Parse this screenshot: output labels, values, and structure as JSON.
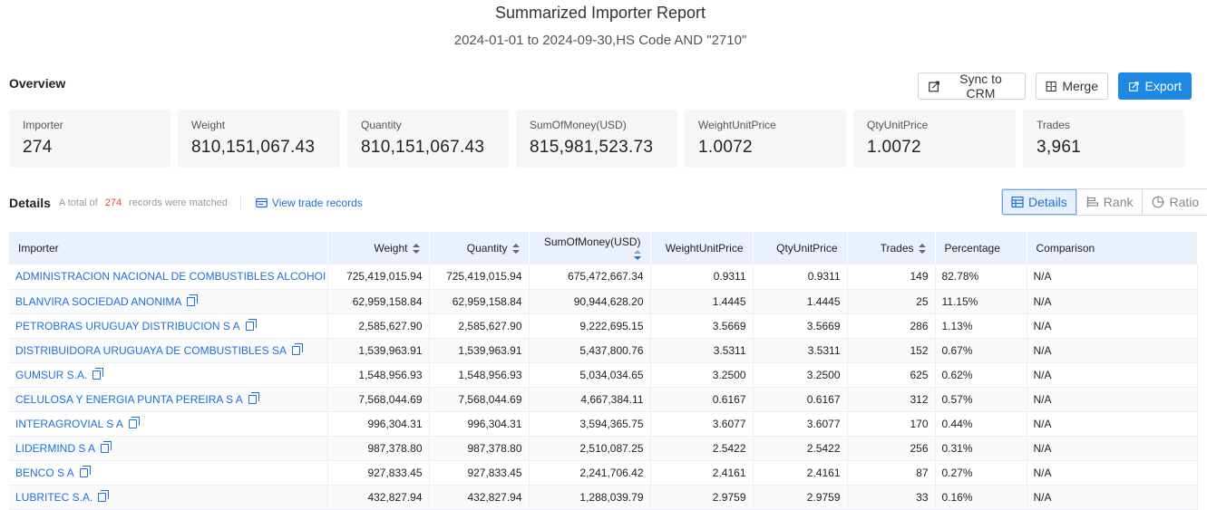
{
  "report": {
    "title": "Summarized Importer Report",
    "subtitle": "2024-01-01 to 2024-09-30,HS Code AND \"2710\""
  },
  "overview": {
    "label": "Overview",
    "sync_label": "Sync to CRM",
    "merge_label": "Merge",
    "export_label": "Export"
  },
  "cards": [
    {
      "label": "Importer",
      "value": "274"
    },
    {
      "label": "Weight",
      "value": "810,151,067.43"
    },
    {
      "label": "Quantity",
      "value": "810,151,067.43"
    },
    {
      "label": "SumOfMoney(USD)",
      "value": "815,981,523.73"
    },
    {
      "label": "WeightUnitPrice",
      "value": "1.0072"
    },
    {
      "label": "QtyUnitPrice",
      "value": "1.0072"
    },
    {
      "label": "Trades",
      "value": "3,961"
    }
  ],
  "details": {
    "label": "Details",
    "total_prefix": "A total of",
    "count": "274",
    "total_suffix": "records were matched",
    "view_link": "View trade records",
    "tabs": [
      "Details",
      "Rank",
      "Ratio"
    ]
  },
  "table": {
    "columns": [
      "Importer",
      "Weight",
      "Quantity",
      "SumOfMoney(USD)",
      "WeightUnitPrice",
      "QtyUnitPrice",
      "Trades",
      "Percentage",
      "Comparison"
    ],
    "rows": [
      [
        "ADMINISTRACION NACIONAL DE COMBUSTIBLES ALCOHOI",
        "725,419,015.94",
        "725,419,015.94",
        "675,472,667.34",
        "0.9311",
        "0.9311",
        "149",
        "82.78%",
        "N/A"
      ],
      [
        "BLANVIRA SOCIEDAD ANONIMA",
        "62,959,158.84",
        "62,959,158.84",
        "90,944,628.20",
        "1.4445",
        "1.4445",
        "25",
        "11.15%",
        "N/A"
      ],
      [
        "PETROBRAS URUGUAY DISTRIBUCION S A",
        "2,585,627.90",
        "2,585,627.90",
        "9,222,695.15",
        "3.5669",
        "3.5669",
        "286",
        "1.13%",
        "N/A"
      ],
      [
        "DISTRIBUIDORA URUGUAYA DE COMBUSTIBLES SA",
        "1,539,963.91",
        "1,539,963.91",
        "5,437,800.76",
        "3.5311",
        "3.5311",
        "152",
        "0.67%",
        "N/A"
      ],
      [
        "GUMSUR S.A.",
        "1,548,956.93",
        "1,548,956.93",
        "5,034,034.65",
        "3.2500",
        "3.2500",
        "625",
        "0.62%",
        "N/A"
      ],
      [
        "CELULOSA Y ENERGIA PUNTA PEREIRA S A",
        "7,568,044.69",
        "7,568,044.69",
        "4,667,384.11",
        "0.6167",
        "0.6167",
        "312",
        "0.57%",
        "N/A"
      ],
      [
        "INTERAGROVIAL S A",
        "996,304.31",
        "996,304.31",
        "3,594,365.75",
        "3.6077",
        "3.6077",
        "170",
        "0.44%",
        "N/A"
      ],
      [
        "LIDERMIND S A",
        "987,378.80",
        "987,378.80",
        "2,510,087.25",
        "2.5422",
        "2.5422",
        "256",
        "0.31%",
        "N/A"
      ],
      [
        "BENCO S A",
        "927,833.45",
        "927,833.45",
        "2,241,706.42",
        "2.4161",
        "2.4161",
        "87",
        "0.27%",
        "N/A"
      ],
      [
        "LUBRITEC S.A.",
        "432,827.94",
        "432,827.94",
        "1,288,039.79",
        "2.9759",
        "2.9759",
        "33",
        "0.16%",
        "N/A"
      ]
    ]
  },
  "colors": {
    "accent": "#1e88e5",
    "link": "#1e6fd9",
    "count": "#e84a2f",
    "header_bg": "#ebf1fc"
  }
}
